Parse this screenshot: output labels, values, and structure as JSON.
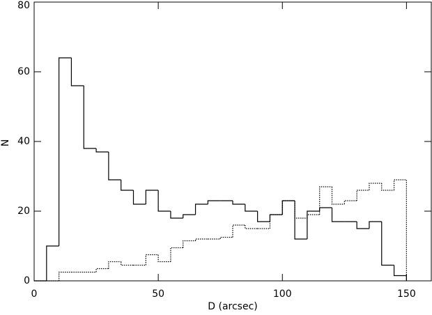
{
  "chart_data": {
    "type": "histogram",
    "xlabel": "D (arcsec)",
    "ylabel": "N",
    "bins": [
      0,
      5,
      10,
      15,
      20,
      25,
      30,
      35,
      40,
      45,
      50,
      55,
      60,
      65,
      70,
      75,
      80,
      85,
      90,
      95,
      100,
      105,
      110,
      115,
      120,
      125,
      130,
      135,
      140,
      145,
      150
    ],
    "series": [
      {
        "color": "#000000",
        "line_style": "solid",
        "values": [
          0,
          10,
          64,
          56,
          38,
          37,
          29,
          26,
          22,
          26,
          20,
          18,
          19,
          22,
          23,
          23,
          22,
          20,
          17,
          19,
          23,
          12,
          20,
          21,
          17,
          17,
          15,
          17,
          4.5,
          1.5
        ]
      },
      {
        "color": "#000000",
        "line_style": "dotted",
        "values": [
          0,
          0,
          2.5,
          2.5,
          2.5,
          3.5,
          5.5,
          4.5,
          4.5,
          7.5,
          5.5,
          9.5,
          11.5,
          12,
          12,
          12.5,
          16,
          15,
          15,
          19,
          23,
          18,
          19,
          27,
          22,
          23,
          26,
          28,
          26,
          29
        ]
      }
    ],
    "xlim": [
      0,
      160
    ],
    "ylim": [
      0,
      80
    ],
    "xticks": [
      0,
      50,
      100,
      150
    ],
    "yticks": [
      0,
      20,
      40,
      60,
      80
    ]
  }
}
